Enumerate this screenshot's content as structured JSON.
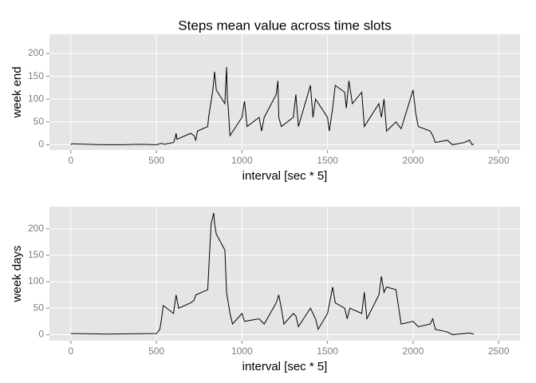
{
  "chart_data": [
    {
      "type": "line",
      "title": "Steps mean value across time slots",
      "xlabel": "interval [sec * 5]",
      "ylabel": "week end",
      "x": [
        0,
        5,
        100,
        200,
        300,
        400,
        500,
        530,
        545,
        600,
        610,
        615,
        620,
        700,
        720,
        730,
        740,
        800,
        805,
        830,
        840,
        845,
        850,
        900,
        910,
        915,
        920,
        930,
        1000,
        1010,
        1015,
        1030,
        1100,
        1115,
        1130,
        1200,
        1210,
        1215,
        1230,
        1300,
        1315,
        1330,
        1400,
        1415,
        1430,
        1500,
        1510,
        1530,
        1545,
        1600,
        1610,
        1625,
        1645,
        1700,
        1715,
        1800,
        1815,
        1830,
        1845,
        1900,
        1930,
        2000,
        2015,
        2030,
        2100,
        2115,
        2130,
        2200,
        2230,
        2300,
        2330,
        2345,
        2355
      ],
      "values": [
        0,
        2,
        1,
        0,
        0,
        1,
        0,
        3,
        1,
        5,
        15,
        25,
        12,
        25,
        20,
        10,
        30,
        40,
        60,
        120,
        160,
        140,
        120,
        90,
        170,
        100,
        80,
        20,
        60,
        85,
        95,
        40,
        60,
        30,
        60,
        110,
        140,
        60,
        40,
        60,
        110,
        40,
        130,
        60,
        100,
        60,
        30,
        80,
        130,
        115,
        80,
        140,
        90,
        115,
        40,
        90,
        60,
        100,
        30,
        50,
        35,
        120,
        70,
        40,
        30,
        20,
        5,
        10,
        0,
        5,
        10,
        0,
        2
      ],
      "color": "#000000",
      "xlim": [
        -125,
        2625
      ],
      "ylim": [
        -11.5,
        241.9
      ],
      "xticks": [
        0,
        500,
        1000,
        1500,
        2000,
        2500
      ],
      "yticks": [
        0,
        50,
        100,
        150,
        200
      ],
      "grid": true
    },
    {
      "type": "line",
      "xlabel": "interval [sec * 5]",
      "ylabel": "week days",
      "x": [
        0,
        200,
        500,
        520,
        530,
        540,
        600,
        615,
        630,
        700,
        720,
        730,
        800,
        810,
        820,
        835,
        840,
        850,
        900,
        910,
        930,
        945,
        1000,
        1015,
        1100,
        1130,
        1200,
        1215,
        1230,
        1245,
        1300,
        1315,
        1330,
        1400,
        1430,
        1445,
        1500,
        1530,
        1545,
        1600,
        1615,
        1630,
        1700,
        1715,
        1730,
        1800,
        1815,
        1830,
        1845,
        1900,
        1930,
        2000,
        2030,
        2100,
        2115,
        2130,
        2200,
        2230,
        2300,
        2330,
        2355
      ],
      "values": [
        2,
        1,
        2,
        10,
        30,
        55,
        40,
        75,
        50,
        60,
        65,
        75,
        85,
        150,
        210,
        230,
        210,
        190,
        160,
        80,
        40,
        20,
        40,
        25,
        30,
        20,
        60,
        75,
        50,
        20,
        40,
        35,
        15,
        50,
        30,
        10,
        40,
        90,
        60,
        50,
        30,
        50,
        40,
        80,
        30,
        75,
        110,
        80,
        90,
        85,
        20,
        25,
        15,
        20,
        30,
        10,
        5,
        0,
        2,
        3,
        1
      ],
      "color": "#000000",
      "xlim": [
        -125,
        2625
      ],
      "ylim": [
        -11.5,
        241.9
      ],
      "xticks": [
        0,
        500,
        1000,
        1500,
        2000,
        2500
      ],
      "yticks": [
        0,
        50,
        100,
        150,
        200
      ],
      "grid": true
    }
  ]
}
